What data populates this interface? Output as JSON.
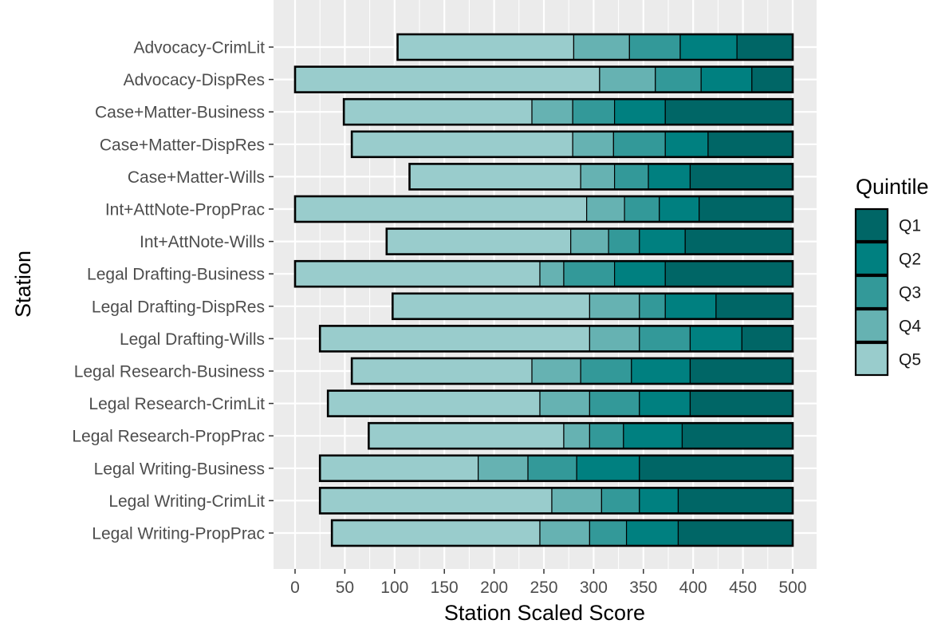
{
  "chart_data": {
    "type": "bar",
    "orientation": "horizontal",
    "stacked": true,
    "xlabel": "Station Scaled Score",
    "ylabel": "Station",
    "xlim": [
      0,
      500
    ],
    "x_ticks": [
      0,
      50,
      100,
      150,
      200,
      250,
      300,
      350,
      400,
      450,
      500
    ],
    "grid": true,
    "legend_placement": "right",
    "legend": {
      "title": "Quintile",
      "entries": [
        "Q1",
        "Q2",
        "Q3",
        "Q4",
        "Q5"
      ]
    },
    "colors": {
      "Q1": "#006666",
      "Q2": "#008080",
      "Q3": "#339999",
      "Q4": "#66b2b2",
      "Q5": "#99cccc",
      "panel_background": "#ebebeb",
      "grid": "#ffffff",
      "bar_outline": "#000000"
    },
    "categories": [
      "Advocacy-CrimLit",
      "Advocacy-DispRes",
      "Case+Matter-Business",
      "Case+Matter-DispRes",
      "Case+Matter-Wills",
      "Int+AttNote-PropPrac",
      "Int+AttNote-Wills",
      "Legal Drafting-Business",
      "Legal Drafting-DispRes",
      "Legal Drafting-Wills",
      "Legal Research-Business",
      "Legal Research-CrimLit",
      "Legal Research-PropPrac",
      "Legal Writing-Business",
      "Legal Writing-CrimLit",
      "Legal Writing-PropPrac"
    ],
    "series_note": "Each bar spans from its minimum score to 500; quintile segment boundaries in score units",
    "series": [
      {
        "name": "Q5",
        "start": [
          103,
          0,
          49,
          57,
          115,
          0,
          92,
          0,
          98,
          25,
          57,
          33,
          74,
          25,
          25,
          37
        ],
        "end": [
          280,
          306,
          238,
          279,
          287,
          293,
          277,
          246,
          296,
          296,
          238,
          246,
          270,
          184,
          258,
          246
        ]
      },
      {
        "name": "Q4",
        "start": [
          280,
          306,
          238,
          279,
          287,
          293,
          277,
          246,
          296,
          296,
          238,
          246,
          270,
          184,
          258,
          246
        ],
        "end": [
          336,
          362,
          279,
          320,
          321,
          331,
          315,
          270,
          346,
          346,
          287,
          296,
          296,
          234,
          308,
          296
        ]
      },
      {
        "name": "Q3",
        "start": [
          336,
          362,
          279,
          320,
          321,
          331,
          315,
          270,
          346,
          346,
          287,
          296,
          296,
          234,
          308,
          296
        ],
        "end": [
          387,
          408,
          321,
          372,
          355,
          366,
          346,
          321,
          372,
          397,
          338,
          346,
          330,
          283,
          346,
          333
        ]
      },
      {
        "name": "Q2",
        "start": [
          387,
          408,
          321,
          372,
          355,
          366,
          346,
          321,
          372,
          397,
          338,
          346,
          330,
          283,
          346,
          333
        ],
        "end": [
          444,
          459,
          372,
          415,
          397,
          406,
          392,
          372,
          423,
          449,
          397,
          397,
          389,
          346,
          385,
          385
        ]
      },
      {
        "name": "Q1",
        "start": [
          444,
          459,
          372,
          415,
          397,
          406,
          392,
          372,
          423,
          449,
          397,
          397,
          389,
          346,
          385,
          385
        ],
        "end": [
          500,
          500,
          500,
          500,
          500,
          500,
          500,
          500,
          500,
          500,
          500,
          500,
          500,
          500,
          500,
          500
        ]
      }
    ]
  }
}
